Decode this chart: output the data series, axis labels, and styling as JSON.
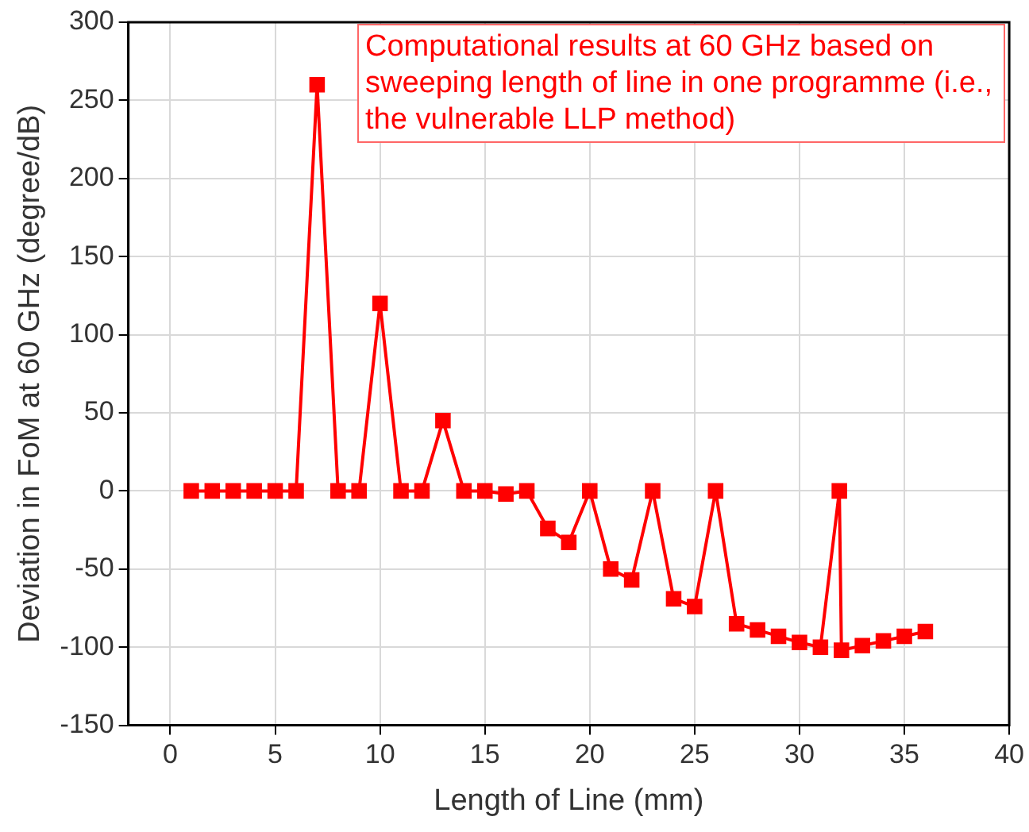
{
  "chart_data": {
    "type": "line",
    "xlabel": "Length of Line (mm)",
    "ylabel": "Deviation in FoM at 60 GHz (degree/dB)",
    "annotations": [
      "Computational results at 60 GHz based on sweeping length of line in one programme (i.e., the vulnerable LLP method)"
    ],
    "x": [
      1,
      2,
      3,
      4,
      5,
      6,
      7,
      8,
      9,
      10,
      11,
      12,
      13,
      14,
      15,
      16,
      17,
      18,
      19,
      20,
      21,
      22,
      23,
      24,
      25,
      26,
      27,
      28,
      29,
      30,
      31,
      31.9,
      32,
      33,
      34,
      35,
      36
    ],
    "series": [
      {
        "color": "#ff0000",
        "values": [
          0,
          0,
          0,
          0,
          0,
          0,
          260,
          0,
          0,
          120,
          0,
          0,
          45,
          0,
          0,
          -2,
          0,
          -24,
          -33,
          0,
          -50,
          -57,
          0,
          -69,
          -74,
          0,
          -85,
          -89,
          -93,
          -97,
          -100,
          0,
          -102,
          -99,
          -96,
          -93,
          -90
        ]
      }
    ],
    "xlim": [
      -2,
      40
    ],
    "xticks": [
      0,
      5,
      10,
      15,
      20,
      25,
      30,
      35,
      40
    ],
    "ylim": [
      -150,
      300
    ],
    "yticks": [
      -150,
      -100,
      -50,
      0,
      50,
      100,
      150,
      200,
      250,
      300
    ],
    "grid": true,
    "legend": false,
    "marker": "square",
    "line_style": "solid"
  }
}
